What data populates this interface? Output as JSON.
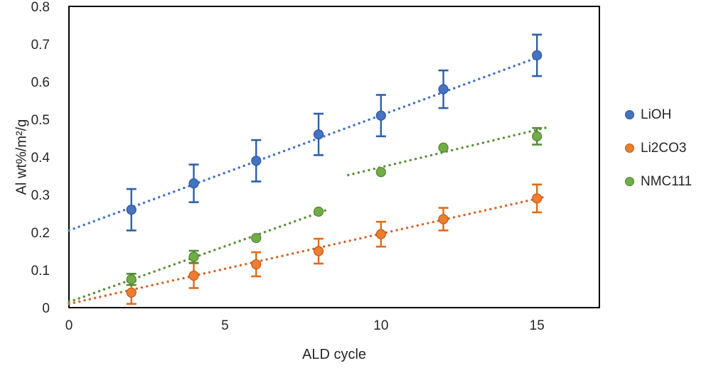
{
  "chart_data": {
    "type": "scatter",
    "title": "",
    "xlabel": "ALD cycle",
    "ylabel": "Al wt%/m²/g",
    "xlim": [
      0,
      17
    ],
    "ylim": [
      0,
      0.8
    ],
    "grid": false,
    "legend_position": "right-outside",
    "frame": {
      "border_color": "#000000",
      "background": "#ffffff"
    },
    "x_ticks": [
      {
        "v": 0,
        "label": "0"
      },
      {
        "v": 5,
        "label": "5"
      },
      {
        "v": 10,
        "label": "10"
      },
      {
        "v": 15,
        "label": "15"
      }
    ],
    "y_ticks": [
      {
        "v": 0,
        "label": "0"
      },
      {
        "v": 0.1,
        "label": "0.1"
      },
      {
        "v": 0.2,
        "label": "0.2"
      },
      {
        "v": 0.3,
        "label": "0.3"
      },
      {
        "v": 0.4,
        "label": "0.4"
      },
      {
        "v": 0.5,
        "label": "0.5"
      },
      {
        "v": 0.6,
        "label": "0.6"
      },
      {
        "v": 0.7,
        "label": "0.7"
      },
      {
        "v": 0.8,
        "label": "0.8"
      }
    ],
    "series": [
      {
        "name": "LiOH",
        "color": "#4472c4",
        "edge_color": "#2e5597",
        "err_color": "#2e5fa8",
        "line_color": "#4472c4",
        "x": [
          2,
          4,
          6,
          8,
          10,
          12,
          15
        ],
        "y": [
          0.26,
          0.33,
          0.39,
          0.46,
          0.51,
          0.58,
          0.67
        ],
        "yerr": [
          0.055,
          0.05,
          0.055,
          0.055,
          0.055,
          0.05,
          0.055
        ],
        "trendlines": [
          {
            "x1": 0,
            "y1": 0.205,
            "x2": 15.2,
            "y2": 0.67
          }
        ]
      },
      {
        "name": "Li2CO3",
        "color": "#ed7d31",
        "edge_color": "#c55a11",
        "err_color": "#e06b16",
        "line_color": "#d2682a",
        "x": [
          2,
          4,
          6,
          8,
          10,
          12,
          15
        ],
        "y": [
          0.04,
          0.085,
          0.115,
          0.15,
          0.195,
          0.235,
          0.29
        ],
        "yerr": [
          0.03,
          0.033,
          0.032,
          0.033,
          0.033,
          0.03,
          0.037
        ],
        "trendlines": [
          {
            "x1": 0,
            "y1": 0.01,
            "x2": 15.3,
            "y2": 0.295
          }
        ]
      },
      {
        "name": "NMC111",
        "color": "#70ad47",
        "edge_color": "#548235",
        "err_color": "#578a35",
        "line_color": "#5b9038",
        "x": [
          2,
          4,
          6,
          8,
          10,
          12,
          15
        ],
        "y": [
          0.075,
          0.135,
          0.185,
          0.255,
          0.36,
          0.425,
          0.455
        ],
        "yerr": [
          0.015,
          0.016,
          0,
          0,
          0,
          0,
          0.022
        ],
        "trendlines": [
          {
            "x1": 0,
            "y1": 0.015,
            "x2": 8.35,
            "y2": 0.262
          },
          {
            "x1": 8.95,
            "y1": 0.352,
            "x2": 15.3,
            "y2": 0.478
          }
        ]
      }
    ]
  }
}
